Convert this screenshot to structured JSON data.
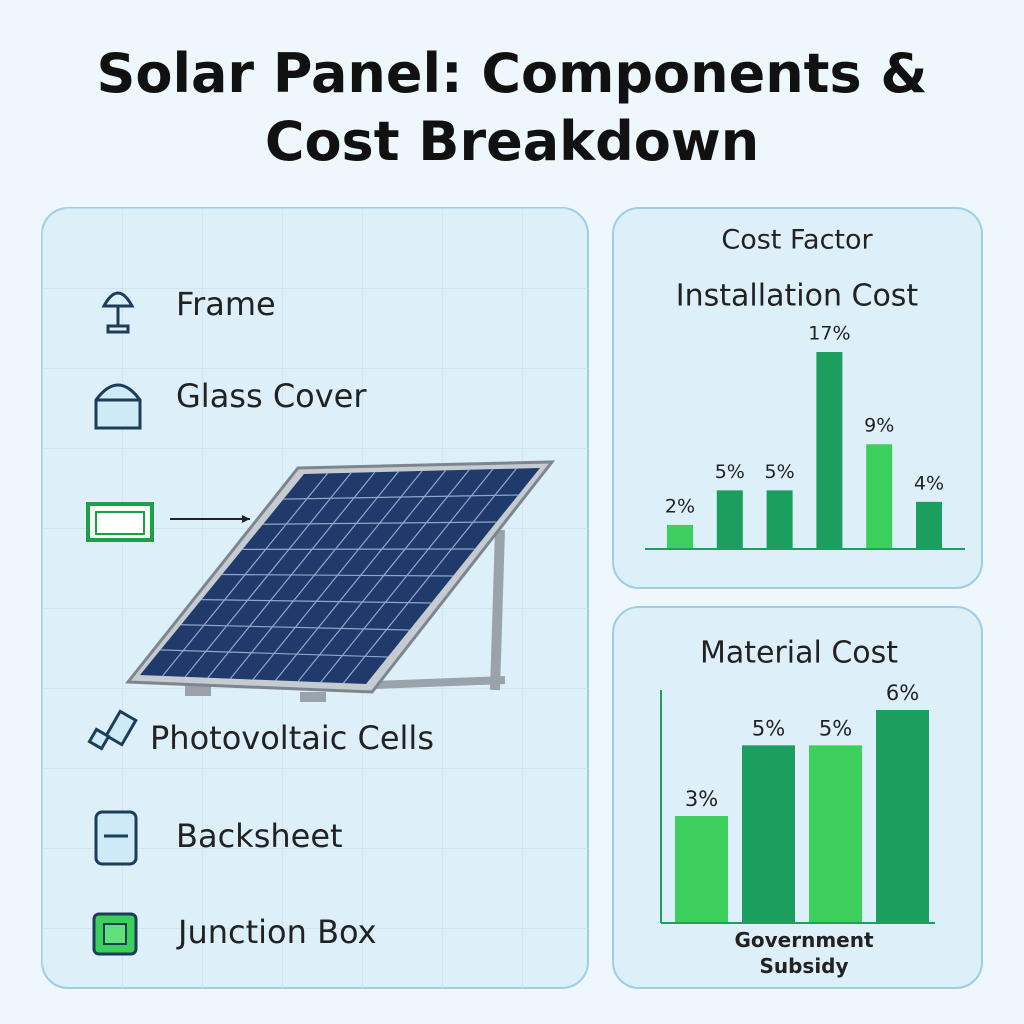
{
  "header": {
    "title": "Solar Panel: Components & Cost Breakdown"
  },
  "components": [
    "Frame",
    "Glass Cover",
    "Photovoltaic Cells",
    "Backsheet",
    "Junction Box"
  ],
  "chart_data": [
    {
      "type": "bar",
      "title": "Cost Factor",
      "subtitle": "Installation Cost",
      "categories": [
        null,
        null,
        null,
        null,
        null,
        null
      ],
      "values": [
        2,
        5,
        5,
        17,
        9,
        4
      ],
      "value_labels": [
        "2%",
        "5%",
        "5%",
        "17%",
        "9%",
        "4%"
      ],
      "colors": [
        "#3ccf5c",
        "#1b9e5e",
        "#1b9e5e",
        "#1b9e5e",
        "#3ccf5c",
        "#1b9e5e"
      ]
    },
    {
      "type": "bar",
      "title": "Material Cost",
      "x_label": "Government Subsidy",
      "categories": [
        null,
        null,
        null,
        null
      ],
      "values": [
        3,
        5,
        5,
        6
      ],
      "value_labels": [
        "3%",
        "5%",
        "5%",
        "6%"
      ],
      "colors": [
        "#3ccf5c",
        "#1b9e5e",
        "#3ccf5c",
        "#1b9e5e"
      ]
    }
  ]
}
